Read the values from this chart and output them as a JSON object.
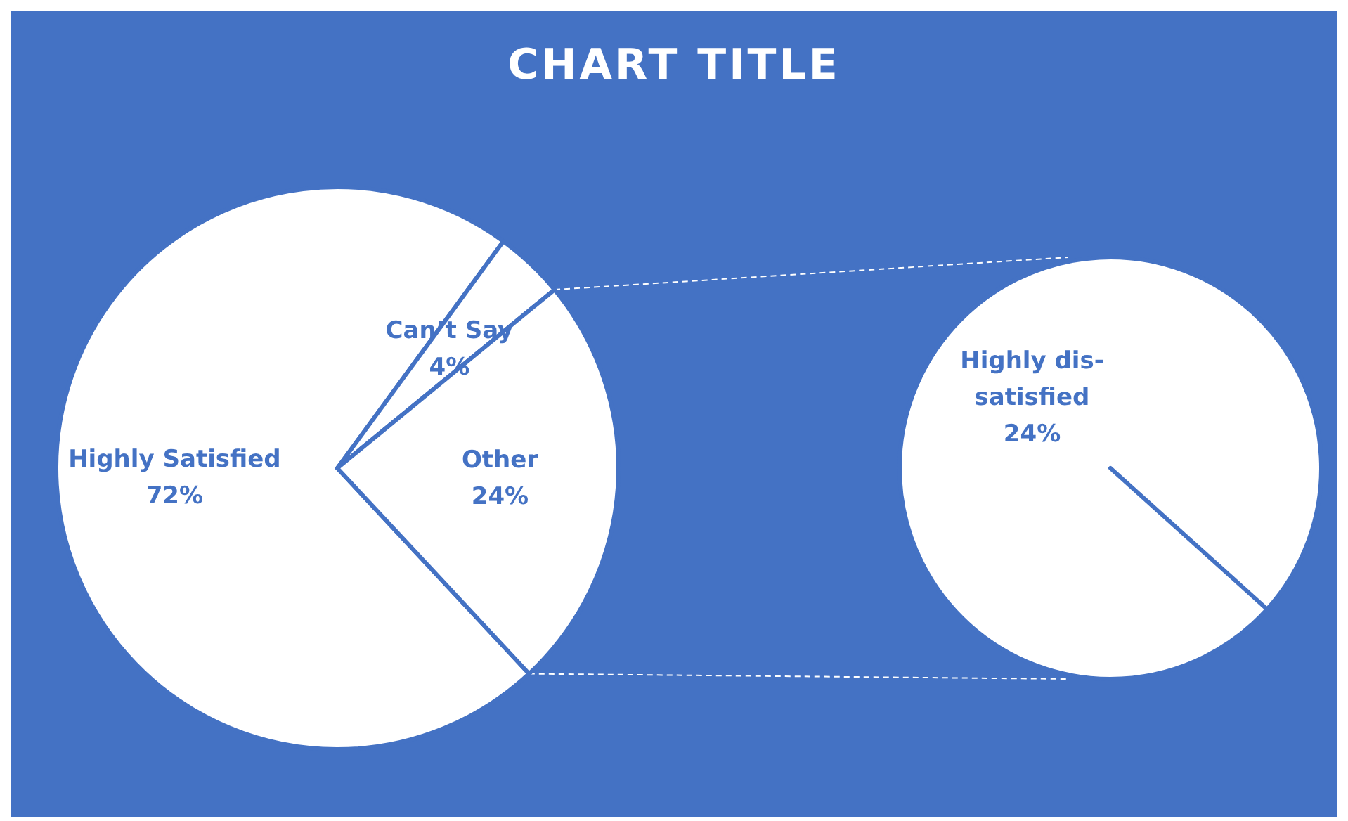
{
  "chart_data": [
    {
      "type": "pie",
      "title": "CHART TITLE",
      "categories": [
        "Highly Satisfied",
        "Can’t Say",
        "Other"
      ],
      "values": [
        72,
        4,
        24
      ],
      "colors": [
        "#ffffff",
        "#ffffff",
        "#ffffff"
      ],
      "value_labels": [
        "72%",
        "4%",
        "24%"
      ]
    },
    {
      "type": "pie",
      "categories": [
        "Highly dis-satisfied"
      ],
      "values": [
        24
      ],
      "colors": [
        "#ffffff"
      ],
      "value_labels": [
        "24%"
      ]
    }
  ]
}
